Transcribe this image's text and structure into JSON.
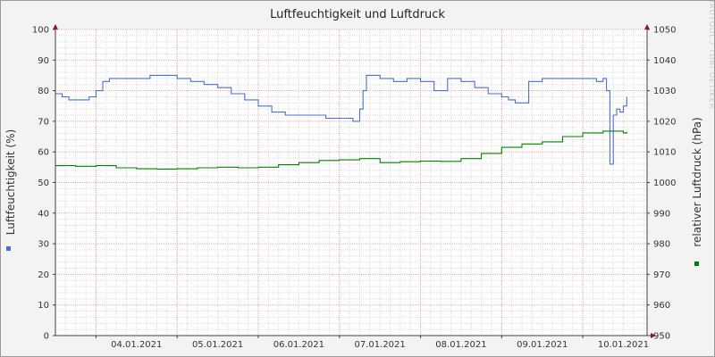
{
  "chart_data": {
    "type": "line",
    "title": "Luftfeuchtigkeit und Luftdruck",
    "watermark": "RRDTOOL / TOBI OETIKER",
    "x": {
      "ticks": [
        "04.01.2021",
        "05.01.2021",
        "06.01.2021",
        "07.01.2021",
        "08.01.2021",
        "09.01.2021",
        "10.01.2021"
      ],
      "range": [
        "03.01.2021 12:00",
        "10.01.2021 19:00"
      ]
    },
    "y_left": {
      "label": "Luftfeuchtigkeit (%)",
      "range": [
        0,
        100
      ],
      "ticks": [
        0,
        10,
        20,
        30,
        40,
        50,
        60,
        70,
        80,
        90,
        100
      ]
    },
    "y_right": {
      "label": "relativer Luftdruck (hPa)",
      "range": [
        950,
        1050
      ],
      "ticks": [
        950,
        960,
        970,
        980,
        990,
        1000,
        1010,
        1020,
        1030,
        1040,
        1050
      ]
    },
    "grid": true,
    "series": [
      {
        "axis": "left",
        "color": "#4a6fd0",
        "times": [
          "03.01.2021 12:00",
          "03.01.2021 14:00",
          "03.01.2021 16:00",
          "03.01.2021 18:00",
          "03.01.2021 20:00",
          "03.01.2021 22:00",
          "04.01.2021 00:00",
          "04.01.2021 02:00",
          "04.01.2021 04:00",
          "04.01.2021 06:00",
          "04.01.2021 08:00",
          "04.01.2021 12:00",
          "04.01.2021 16:00",
          "04.01.2021 20:00",
          "05.01.2021 00:00",
          "05.01.2021 04:00",
          "05.01.2021 08:00",
          "05.01.2021 12:00",
          "05.01.2021 16:00",
          "05.01.2021 20:00",
          "06.01.2021 00:00",
          "06.01.2021 04:00",
          "06.01.2021 08:00",
          "06.01.2021 12:00",
          "06.01.2021 16:00",
          "06.01.2021 20:00",
          "07.01.2021 00:00",
          "07.01.2021 04:00",
          "07.01.2021 06:00",
          "07.01.2021 07:00",
          "07.01.2021 08:00",
          "07.01.2021 12:00",
          "07.01.2021 16:00",
          "07.01.2021 20:00",
          "08.01.2021 00:00",
          "08.01.2021 04:00",
          "08.01.2021 08:00",
          "08.01.2021 12:00",
          "08.01.2021 16:00",
          "08.01.2021 20:00",
          "09.01.2021 00:00",
          "09.01.2021 02:00",
          "09.01.2021 04:00",
          "09.01.2021 06:00",
          "09.01.2021 08:00",
          "09.01.2021 12:00",
          "09.01.2021 16:00",
          "09.01.2021 20:00",
          "10.01.2021 00:00",
          "10.01.2021 04:00",
          "10.01.2021 06:00",
          "10.01.2021 07:00",
          "10.01.2021 08:00",
          "10.01.2021 09:00",
          "10.01.2021 10:00",
          "10.01.2021 11:00",
          "10.01.2021 12:00",
          "10.01.2021 13:00"
        ],
        "values": [
          79,
          78,
          77,
          77,
          77,
          78,
          80,
          83,
          84,
          84,
          84,
          84,
          85,
          85,
          84,
          83,
          82,
          81,
          79,
          77,
          75,
          73,
          72,
          72,
          72,
          71,
          71,
          70,
          74,
          80,
          85,
          84,
          83,
          84,
          83,
          80,
          84,
          83,
          81,
          79,
          78,
          77,
          76,
          76,
          83,
          84,
          84,
          84,
          84,
          83,
          84,
          80,
          56,
          72,
          74,
          73,
          75,
          78
        ]
      },
      {
        "axis": "right",
        "color": "#008000",
        "times": [
          "03.01.2021 12:00",
          "03.01.2021 18:00",
          "04.01.2021 00:00",
          "04.01.2021 06:00",
          "04.01.2021 12:00",
          "04.01.2021 18:00",
          "05.01.2021 00:00",
          "05.01.2021 06:00",
          "05.01.2021 12:00",
          "05.01.2021 18:00",
          "06.01.2021 00:00",
          "06.01.2021 06:00",
          "06.01.2021 12:00",
          "06.01.2021 18:00",
          "07.01.2021 00:00",
          "07.01.2021 06:00",
          "07.01.2021 12:00",
          "07.01.2021 18:00",
          "08.01.2021 00:00",
          "08.01.2021 06:00",
          "08.01.2021 12:00",
          "08.01.2021 18:00",
          "09.01.2021 00:00",
          "09.01.2021 06:00",
          "09.01.2021 12:00",
          "09.01.2021 18:00",
          "10.01.2021 00:00",
          "10.01.2021 06:00",
          "10.01.2021 12:00",
          "10.01.2021 13:00"
        ],
        "values": [
          1005.5,
          1005.3,
          1005.5,
          1004.8,
          1004.5,
          1004.4,
          1004.5,
          1004.8,
          1005,
          1004.8,
          1005,
          1005.8,
          1006.5,
          1007.2,
          1007.4,
          1007.8,
          1006.5,
          1006.8,
          1007,
          1006.9,
          1007.8,
          1009.5,
          1011.5,
          1012.6,
          1013.3,
          1015,
          1016.2,
          1016.8,
          1016.2,
          1016.6
        ]
      }
    ]
  }
}
